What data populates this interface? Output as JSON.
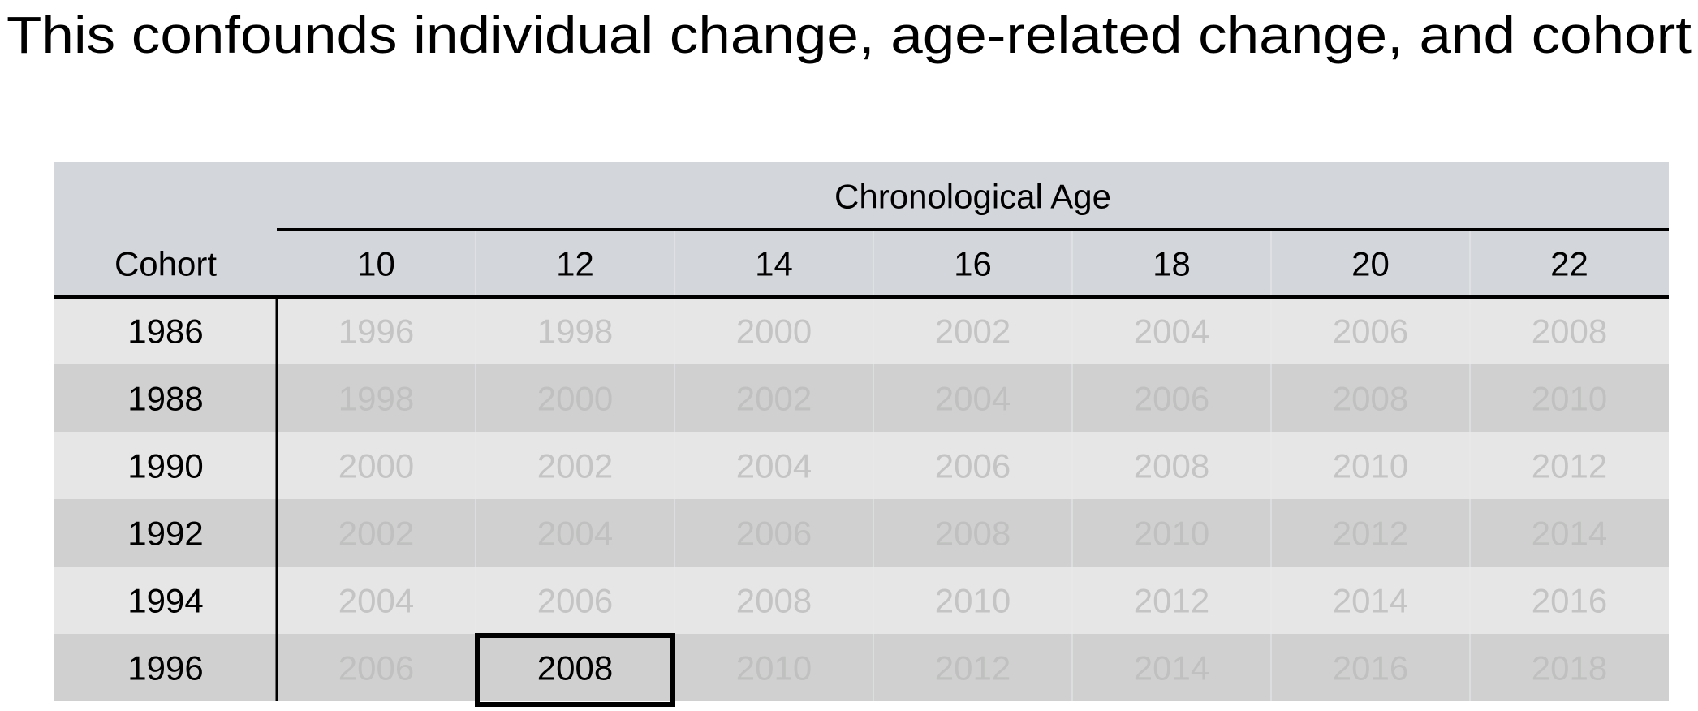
{
  "title": "This confounds individual change, age-related change, and cohort",
  "table": {
    "group_header": "Chronological Age",
    "row_header": "Cohort",
    "columns": [
      10,
      12,
      14,
      16,
      18,
      20,
      22
    ],
    "rows": [
      {
        "cohort": 1986,
        "values": [
          1996,
          1998,
          2000,
          2002,
          2004,
          2006,
          2008
        ]
      },
      {
        "cohort": 1988,
        "values": [
          1998,
          2000,
          2002,
          2004,
          2006,
          2008,
          2010
        ]
      },
      {
        "cohort": 1990,
        "values": [
          2000,
          2002,
          2004,
          2006,
          2008,
          2010,
          2012
        ]
      },
      {
        "cohort": 1992,
        "values": [
          2002,
          2004,
          2006,
          2008,
          2010,
          2012,
          2014
        ]
      },
      {
        "cohort": 1994,
        "values": [
          2004,
          2006,
          2008,
          2010,
          2012,
          2014,
          2016
        ]
      },
      {
        "cohort": 1996,
        "values": [
          2006,
          2008,
          2010,
          2012,
          2014,
          2016,
          2018
        ]
      }
    ],
    "highlight": [
      5,
      1
    ]
  }
}
